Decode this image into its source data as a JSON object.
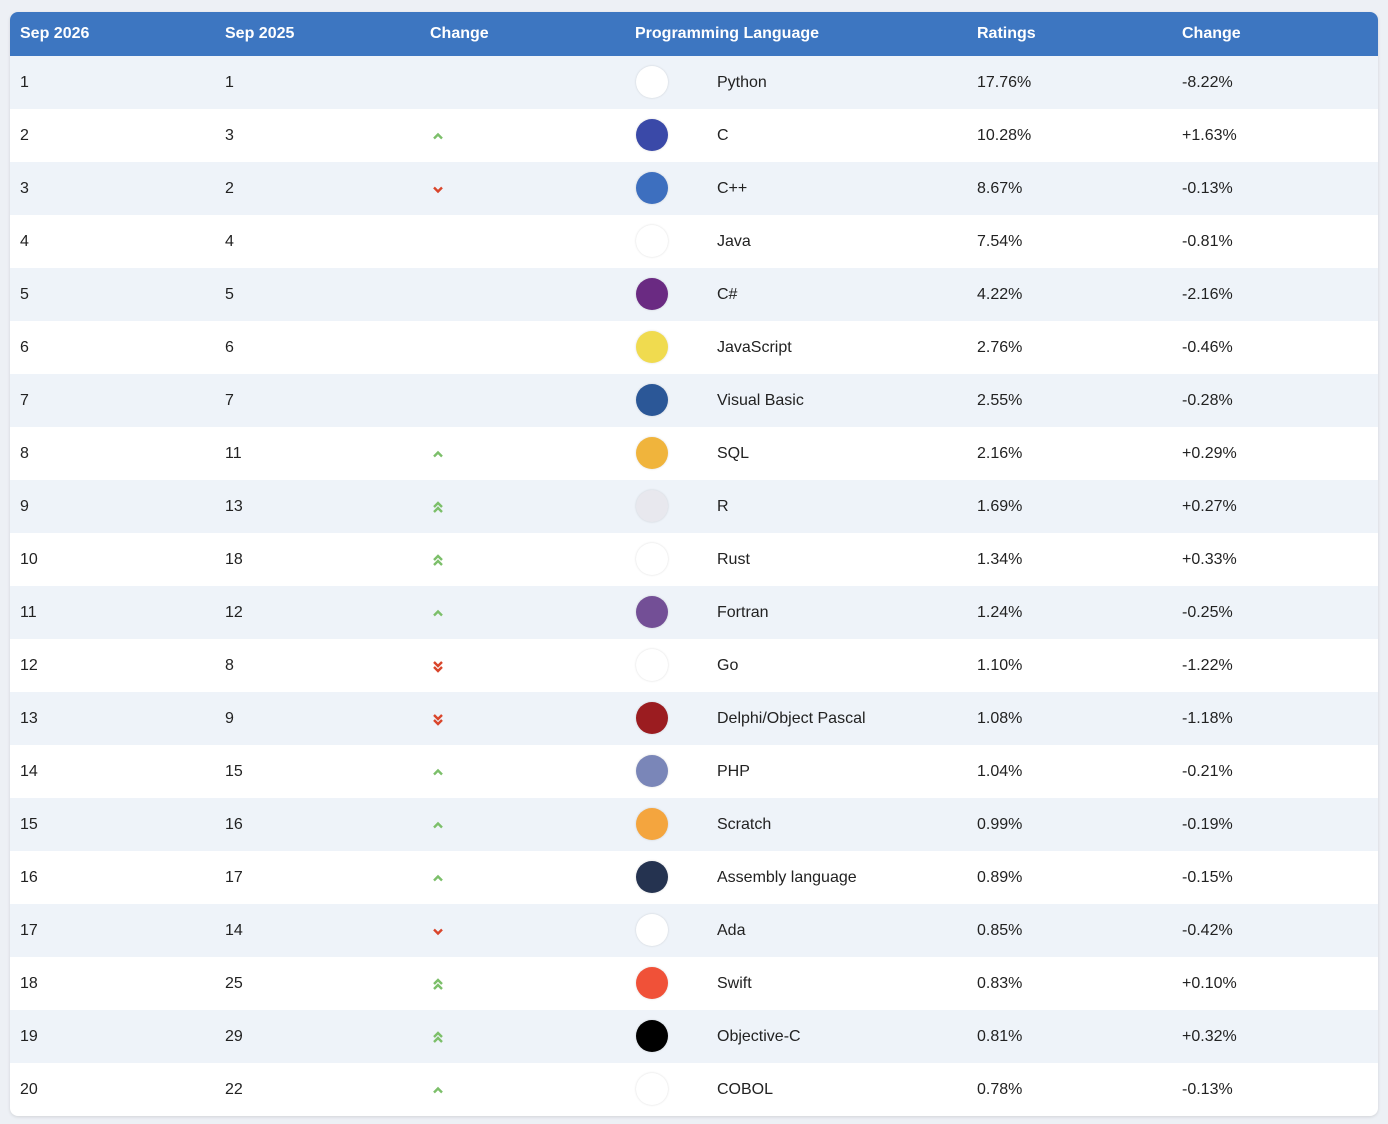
{
  "table": {
    "headers": [
      "Sep 2026",
      "Sep 2025",
      "Change",
      "Programming Language",
      "Ratings",
      "Change"
    ],
    "rows": [
      [
        "1",
        "1",
        "Python",
        "17.76%",
        "-8.22%"
      ],
      [
        "2",
        "3",
        "C",
        "10.28%",
        "+1.63%"
      ],
      [
        "3",
        "2",
        "C++",
        "8.67%",
        "-0.13%"
      ],
      [
        "4",
        "4",
        "Java",
        "7.54%",
        "-0.81%"
      ],
      [
        "5",
        "5",
        "C#",
        "4.22%",
        "-2.16%"
      ],
      [
        "6",
        "6",
        "JavaScript",
        "2.76%",
        "-0.46%"
      ],
      [
        "7",
        "7",
        "Visual Basic",
        "2.55%",
        "-0.28%"
      ],
      [
        "8",
        "11",
        "SQL",
        "2.16%",
        "+0.29%"
      ],
      [
        "9",
        "13",
        "R",
        "1.69%",
        "+0.27%"
      ],
      [
        "10",
        "18",
        "Rust",
        "1.34%",
        "+0.33%"
      ],
      [
        "11",
        "12",
        "Fortran",
        "1.24%",
        "-0.25%"
      ],
      [
        "12",
        "8",
        "Go",
        "1.10%",
        "-1.22%"
      ],
      [
        "13",
        "9",
        "Delphi/Object Pascal",
        "1.08%",
        "-1.18%"
      ],
      [
        "14",
        "15",
        "PHP",
        "1.04%",
        "-0.21%"
      ],
      [
        "15",
        "16",
        "Scratch",
        "0.99%",
        "-0.19%"
      ],
      [
        "16",
        "17",
        "Assembly language",
        "0.89%",
        "-0.15%"
      ],
      [
        "17",
        "14",
        "Ada",
        "0.85%",
        "-0.42%"
      ],
      [
        "18",
        "25",
        "Swift",
        "0.83%",
        "+0.10%"
      ],
      [
        "19",
        "29",
        "Objective-C",
        "0.81%",
        "+0.32%"
      ],
      [
        "20",
        "22",
        "COBOL",
        "0.78%",
        "-0.13%"
      ]
    ]
  }
}
